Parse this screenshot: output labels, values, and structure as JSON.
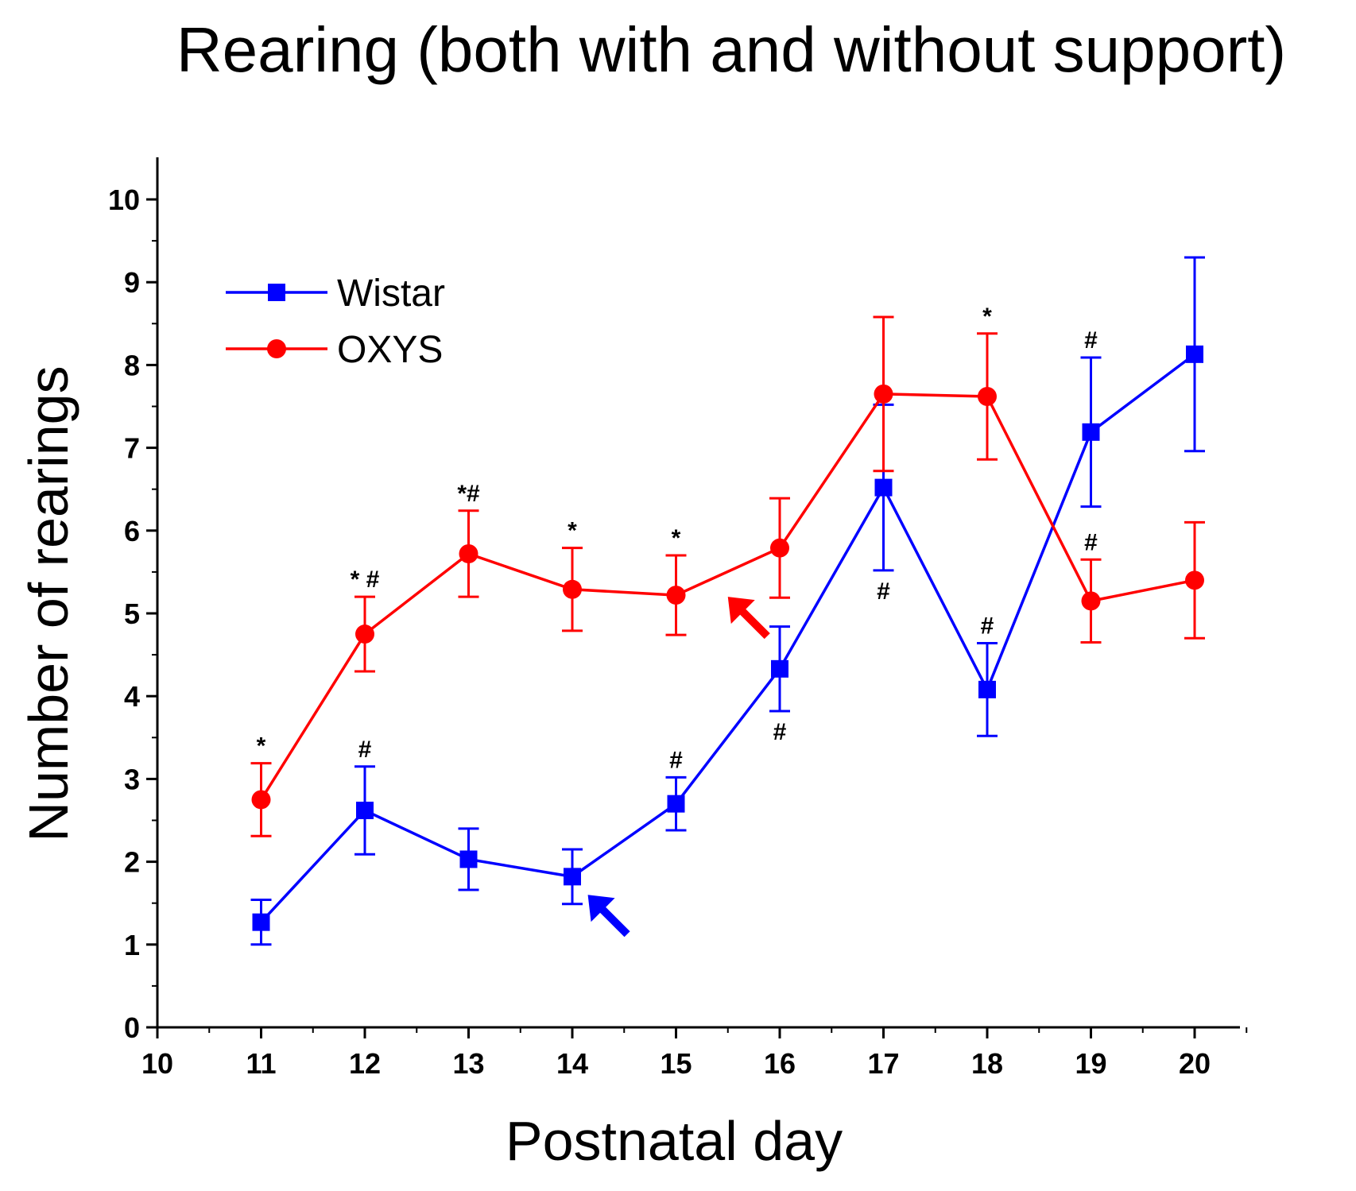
{
  "chart_data": {
    "type": "line",
    "title": "Rearing (both with and without support)",
    "xlabel": "Postnatal day",
    "ylabel": "Number of rearings",
    "xlim": [
      10,
      20.5
    ],
    "ylim": [
      0,
      10.5
    ],
    "x_ticks": [
      10,
      11,
      12,
      13,
      14,
      15,
      16,
      17,
      18,
      19,
      20
    ],
    "y_ticks": [
      0,
      1,
      2,
      3,
      4,
      5,
      6,
      7,
      8,
      9,
      10
    ],
    "grid": false,
    "legend_position": "top-left",
    "x": [
      11,
      12,
      13,
      14,
      15,
      16,
      17,
      18,
      19,
      20
    ],
    "series": [
      {
        "name": "Wistar",
        "color": "#0000ff",
        "marker": "square",
        "values": [
          1.27,
          2.62,
          2.03,
          1.82,
          2.7,
          4.33,
          6.52,
          4.08,
          7.19,
          8.13
        ],
        "error": [
          0.27,
          0.53,
          0.37,
          0.33,
          0.32,
          0.51,
          1.0,
          0.56,
          0.9,
          1.17
        ],
        "annotations": [
          "",
          "#",
          "",
          "",
          "#",
          "#",
          "#",
          "#",
          "#",
          ""
        ],
        "annotation_positions": [
          "",
          "above",
          "",
          "",
          "above",
          "below",
          "below",
          "above",
          "above",
          ""
        ]
      },
      {
        "name": "OXYS",
        "color": "#ff0000",
        "marker": "circle",
        "values": [
          2.75,
          4.75,
          5.72,
          5.29,
          5.22,
          5.79,
          7.65,
          7.62,
          5.15,
          5.4
        ],
        "error": [
          0.44,
          0.45,
          0.52,
          0.5,
          0.48,
          0.6,
          0.93,
          0.76,
          0.5,
          0.7
        ],
        "annotations": [
          "*",
          "* #",
          "*#",
          "*",
          "*",
          "",
          "",
          "*",
          "#",
          ""
        ],
        "annotation_positions": [
          "above",
          "above",
          "above",
          "above",
          "above",
          "",
          "",
          "above",
          "above",
          ""
        ]
      }
    ],
    "arrows": [
      {
        "color": "#ff0000",
        "points_to_x": 15.5,
        "points_to_y": 5.2
      },
      {
        "color": "#0000ff",
        "points_to_x": 14.15,
        "points_to_y": 1.6
      }
    ]
  }
}
